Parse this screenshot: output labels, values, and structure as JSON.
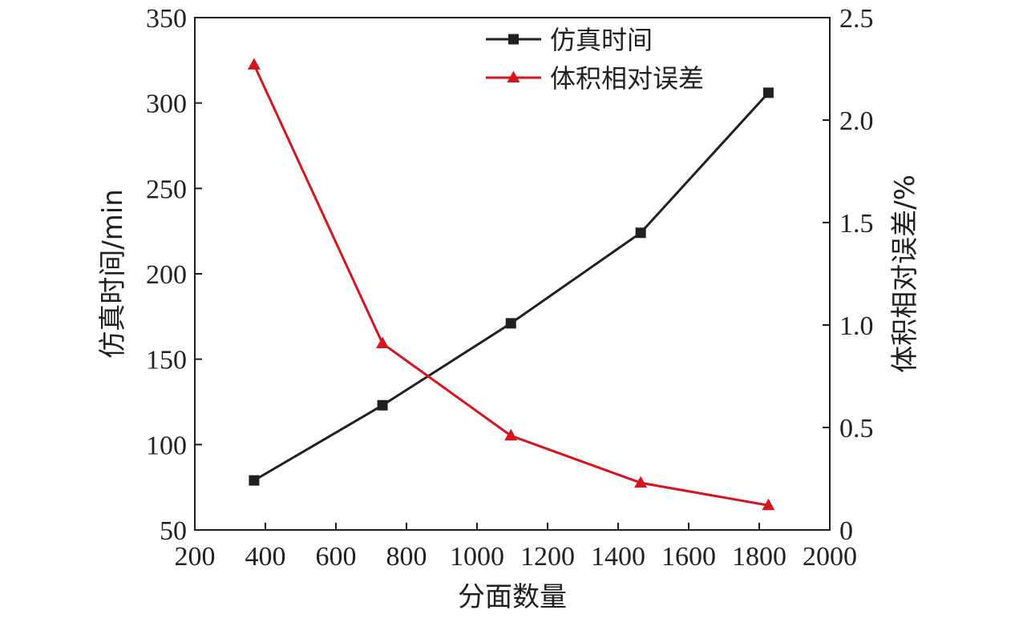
{
  "chart_data": {
    "type": "line",
    "xlabel": "分面数量",
    "ylabel_left": "仿真时间/min",
    "ylabel_right": "体积相对误差/%",
    "xlim": [
      200,
      2000
    ],
    "ylim_left": [
      50,
      350
    ],
    "ylim_right": [
      0,
      2.5
    ],
    "x_ticks": [
      200,
      400,
      600,
      800,
      1000,
      1200,
      1400,
      1600,
      1800,
      2000
    ],
    "x_tick_labels": [
      "200",
      "400",
      "600",
      "800",
      "1000",
      "1200",
      "1400",
      "1600",
      "1800",
      "2000"
    ],
    "y_left_ticks": [
      50,
      100,
      150,
      200,
      250,
      300,
      350
    ],
    "y_left_tick_labels": [
      "50",
      "100",
      "150",
      "200",
      "250",
      "300",
      "350"
    ],
    "y_right_ticks": [
      0,
      0.5,
      1.0,
      1.5,
      2.0,
      2.5
    ],
    "y_right_tick_labels": [
      "0",
      "0.5",
      "1.0",
      "1.5",
      "2.0",
      "2.5"
    ],
    "grid": false,
    "legend_position": "top-center",
    "series": [
      {
        "name": "仿真时间",
        "axis": "left",
        "marker": "square",
        "color": "#231f20",
        "x": [
          368,
          732,
          1096,
          1464,
          1826
        ],
        "y": [
          79,
          123,
          171,
          224,
          306
        ]
      },
      {
        "name": "体积相对误差",
        "axis": "right",
        "marker": "triangle",
        "color": "#d7141e",
        "x": [
          368,
          732,
          1096,
          1464,
          1826
        ],
        "y": [
          2.27,
          0.91,
          0.46,
          0.23,
          0.12
        ]
      }
    ]
  }
}
